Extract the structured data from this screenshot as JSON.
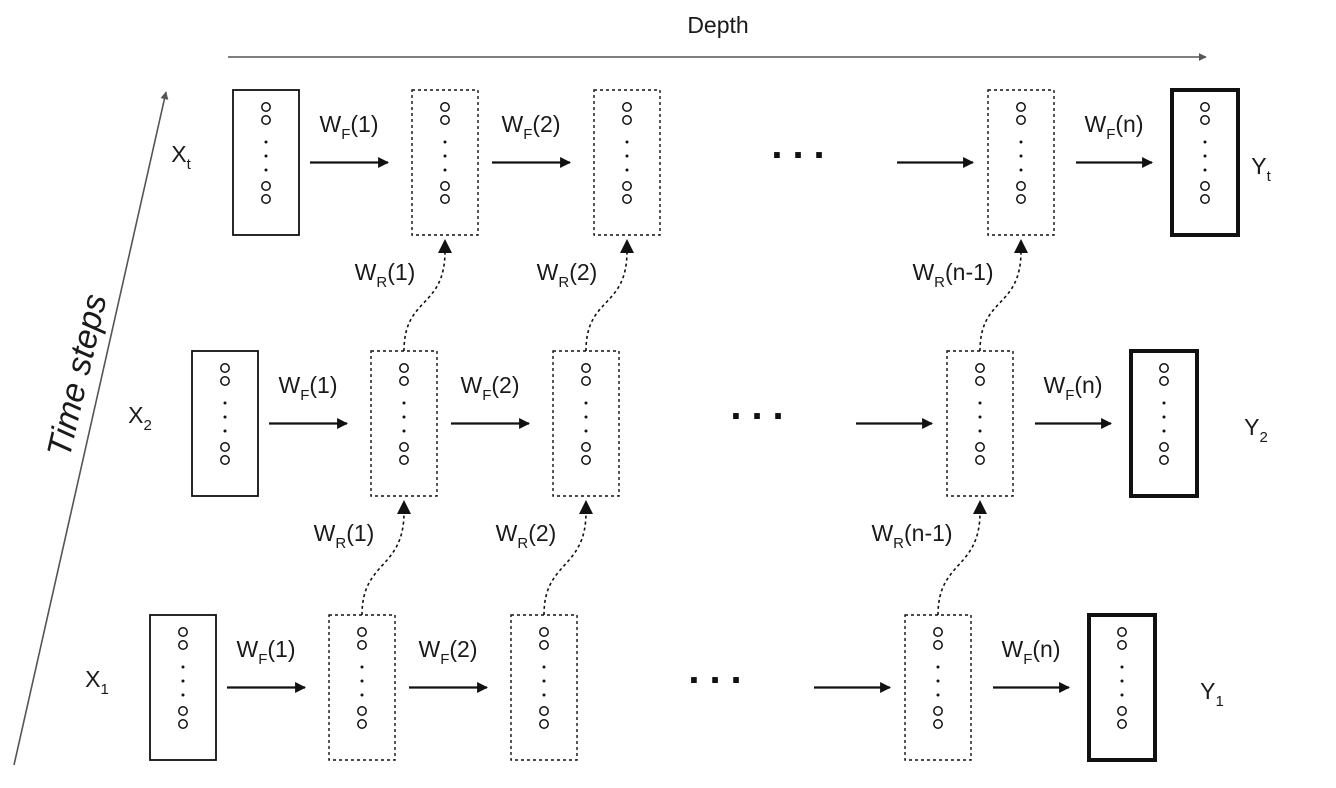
{
  "axes": {
    "depth_label": "Depth",
    "time_label": "Time steps"
  },
  "ellipsis": "...",
  "rows": [
    {
      "name": "row-t",
      "input": {
        "main": "X",
        "sub": "t"
      },
      "output": {
        "main": "Y",
        "sub": "t"
      },
      "forward": [
        {
          "main": "W",
          "sub": "F",
          "arg": "(1)"
        },
        {
          "main": "W",
          "sub": "F",
          "arg": "(2)"
        },
        {
          "main": "W",
          "sub": "F",
          "arg": "(n)"
        }
      ]
    },
    {
      "name": "row-2",
      "input": {
        "main": "X",
        "sub": "2"
      },
      "output": {
        "main": "Y",
        "sub": "2"
      },
      "forward": [
        {
          "main": "W",
          "sub": "F",
          "arg": "(1)"
        },
        {
          "main": "W",
          "sub": "F",
          "arg": "(2)"
        },
        {
          "main": "W",
          "sub": "F",
          "arg": "(n)"
        }
      ],
      "recurrent": [
        {
          "main": "W",
          "sub": "R",
          "arg": "(1)"
        },
        {
          "main": "W",
          "sub": "R",
          "arg": "(2)"
        },
        {
          "main": "W",
          "sub": "R",
          "arg": "(n-1)"
        }
      ]
    },
    {
      "name": "row-1",
      "input": {
        "main": "X",
        "sub": "1"
      },
      "output": {
        "main": "Y",
        "sub": "1"
      },
      "forward": [
        {
          "main": "W",
          "sub": "F",
          "arg": "(1)"
        },
        {
          "main": "W",
          "sub": "F",
          "arg": "(2)"
        },
        {
          "main": "W",
          "sub": "F",
          "arg": "(n)"
        }
      ],
      "recurrent": [
        {
          "main": "W",
          "sub": "R",
          "arg": "(1)"
        },
        {
          "main": "W",
          "sub": "R",
          "arg": "(2)"
        },
        {
          "main": "W",
          "sub": "R",
          "arg": "(n-1)"
        }
      ]
    }
  ],
  "colors": {
    "line": "#111111",
    "axis": "#555555"
  }
}
